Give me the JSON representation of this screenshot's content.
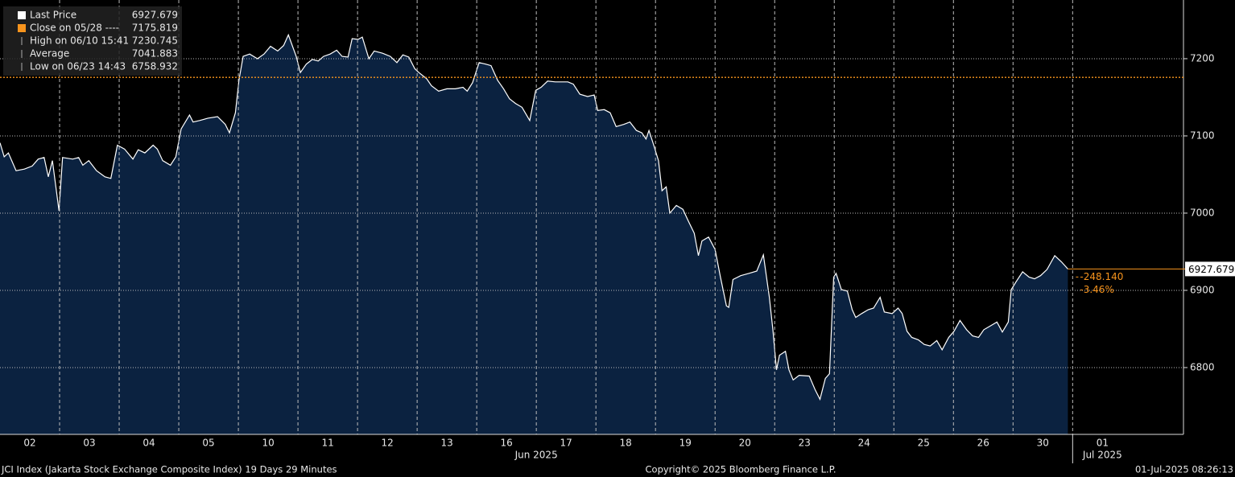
{
  "chart_data": {
    "type": "area",
    "series": [
      {
        "name": "Last Price",
        "color": "#ffffff",
        "fill": "#0b2240",
        "x": [
          0.0,
          0.07,
          0.14,
          0.27,
          0.41,
          0.54,
          0.64,
          0.74,
          0.81,
          0.88,
          0.99,
          1.05,
          1.22,
          1.32,
          1.39,
          1.49,
          1.62,
          1.76,
          1.86,
          1.97,
          2.09,
          2.23,
          2.32,
          2.43,
          2.57,
          2.64,
          2.73,
          2.86,
          2.95,
          3.04,
          3.18,
          3.24,
          3.35,
          3.49,
          3.65,
          3.78,
          3.85,
          3.95,
          4.01,
          4.08,
          4.19,
          4.32,
          4.43,
          4.54,
          4.66,
          4.76,
          4.84,
          4.97,
          5.04,
          5.14,
          5.24,
          5.34,
          5.43,
          5.54,
          5.65,
          5.74,
          5.84,
          5.91,
          6.01,
          6.08,
          6.19,
          6.28,
          6.42,
          6.55,
          6.66,
          6.76,
          6.86,
          6.96,
          7.03,
          7.16,
          7.24,
          7.36,
          7.5,
          7.64,
          7.77,
          7.84,
          7.93,
          8.04,
          8.15,
          8.24,
          8.35,
          8.45,
          8.55,
          8.65,
          8.76,
          8.89,
          8.99,
          9.08,
          9.19,
          9.32,
          9.53,
          9.62,
          9.73,
          9.86,
          9.97,
          10.03,
          10.14,
          10.24,
          10.34,
          10.47,
          10.57,
          10.68,
          10.77,
          10.84,
          10.89,
          10.97,
          11.05,
          11.11,
          11.18,
          11.24,
          11.35,
          11.46,
          11.55,
          11.65,
          11.72,
          11.78,
          11.89,
          12.0,
          12.09,
          12.19,
          12.23,
          12.3,
          12.43,
          12.57,
          12.7,
          12.81,
          12.91,
          12.97,
          13.03,
          13.08,
          13.18,
          13.24,
          13.31,
          13.41,
          13.58,
          13.68,
          13.76,
          13.85,
          13.92,
          13.99,
          14.03,
          14.12,
          14.22,
          14.3,
          14.36,
          14.46,
          14.57,
          14.66,
          14.77,
          14.84,
          14.97,
          15.07,
          15.14,
          15.22,
          15.3,
          15.41,
          15.51,
          15.61,
          15.72,
          15.81,
          15.92,
          16.01,
          16.11,
          16.22,
          16.32,
          16.42,
          16.51,
          16.62,
          16.73,
          16.82,
          16.92,
          16.97,
          17.05,
          17.16,
          17.27,
          17.36,
          17.46,
          17.57,
          17.7,
          17.81,
          17.92
        ],
        "values": [
          7091,
          7073,
          7078,
          7055,
          7057,
          7061,
          7070,
          7072,
          7047,
          7068,
          7003,
          7072,
          7070,
          7072,
          7062,
          7068,
          7055,
          7047,
          7045,
          7088,
          7083,
          7070,
          7082,
          7078,
          7088,
          7083,
          7068,
          7062,
          7073,
          7109,
          7127,
          7118,
          7120,
          7123,
          7125,
          7115,
          7104,
          7130,
          7172,
          7203,
          7206,
          7200,
          7206,
          7216,
          7210,
          7217,
          7230.745,
          7203,
          7182,
          7193,
          7199,
          7197,
          7203,
          7206,
          7211,
          7203,
          7202,
          7226,
          7225,
          7228,
          7200,
          7210,
          7207,
          7203,
          7195,
          7205,
          7202,
          7187,
          7182,
          7174,
          7165,
          7158,
          7161,
          7161,
          7163,
          7158,
          7169,
          7195,
          7193,
          7191,
          7172,
          7161,
          7148,
          7142,
          7137,
          7120,
          7159,
          7163,
          7171,
          7170,
          7170,
          7167,
          7154,
          7151,
          7153,
          7133,
          7134,
          7130,
          7112,
          7115,
          7118,
          7107,
          7104,
          7096,
          7107,
          7088,
          7068,
          7029,
          7034,
          7000,
          7010,
          7005,
          6990,
          6974,
          6945,
          6964,
          6969,
          6953,
          6917,
          6880,
          6878,
          6914,
          6919,
          6922,
          6925,
          6946,
          6891,
          6849,
          6797,
          6816,
          6821,
          6797,
          6784,
          6790,
          6789,
          6771,
          6758.932,
          6786,
          6792,
          6917,
          6922,
          6901,
          6899,
          6875,
          6865,
          6870,
          6875,
          6877,
          6891,
          6872,
          6870,
          6877,
          6870,
          6847,
          6839,
          6836,
          6830,
          6828,
          6835,
          6823,
          6839,
          6847,
          6861,
          6849,
          6841,
          6839,
          6849,
          6854,
          6859,
          6846,
          6859,
          6901,
          6911,
          6924,
          6917,
          6915,
          6919,
          6927,
          6945,
          6937,
          6927.679
        ]
      }
    ],
    "stats": [
      {
        "label": "Close on 05/28 ----",
        "value": 7175.819,
        "color": "#f7941d"
      },
      {
        "label": "High on 06/10 15:41",
        "value": 7230.745
      },
      {
        "label": "Average",
        "value": 7041.883
      },
      {
        "label": "Low on 06/23 14:43",
        "value": 6758.932
      }
    ],
    "change": {
      "value": -248.14,
      "label": "-248.140"
    },
    "change_pct": {
      "value": -3.46,
      "label": "-3.46%"
    },
    "xlim": [
      0,
      19.86
    ],
    "ylim": [
      6713.5,
      7276
    ],
    "yticks": [
      6800,
      6900,
      7000,
      7100,
      7200
    ],
    "xticks": [
      {
        "value": 0.5,
        "label": "02"
      },
      {
        "value": 1.5,
        "label": "03"
      },
      {
        "value": 2.5,
        "label": "04"
      },
      {
        "value": 3.5,
        "label": "05"
      },
      {
        "value": 4.5,
        "label": "10"
      },
      {
        "value": 5.5,
        "label": "11"
      },
      {
        "value": 6.5,
        "label": "12"
      },
      {
        "value": 7.5,
        "label": "13"
      },
      {
        "value": 8.5,
        "label": "16"
      },
      {
        "value": 9.5,
        "label": "17"
      },
      {
        "value": 10.5,
        "label": "18"
      },
      {
        "value": 11.5,
        "label": "19"
      },
      {
        "value": 12.5,
        "label": "20"
      },
      {
        "value": 13.5,
        "label": "23"
      },
      {
        "value": 14.5,
        "label": "24"
      },
      {
        "value": 15.5,
        "label": "25"
      },
      {
        "value": 16.5,
        "label": "26"
      },
      {
        "value": 17.5,
        "label": "30"
      },
      {
        "value": 18.5,
        "label": "01"
      }
    ],
    "months": [
      {
        "value": 9,
        "label": "Jun 2025"
      },
      {
        "value": 18.5,
        "label": "Jul 2025"
      }
    ],
    "grid": true,
    "footer": {
      "left": "JCI Index (Jakarta Stock Exchange Composite Index) 19 Days 29 Minutes",
      "center": "Copyright© 2025 Bloomberg Finance L.P.",
      "right": "01-Jul-2025 08:26:13"
    }
  }
}
